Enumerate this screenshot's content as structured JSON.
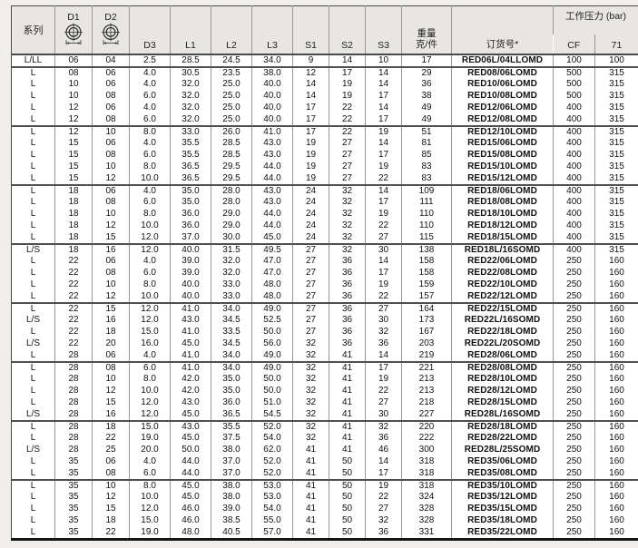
{
  "table": {
    "header": {
      "series": "系列",
      "d1": "D1",
      "d2": "D2",
      "d3": "D3",
      "l1": "L1",
      "l2": "L2",
      "l3": "L3",
      "s1": "S1",
      "s2": "S2",
      "s3": "S3",
      "weight_line1": "重量",
      "weight_line2": "克/件",
      "order_no": "订货号*",
      "pressure": "工作压力 (bar)",
      "cf": "CF",
      "p71": "71"
    },
    "columns": [
      "series",
      "d1",
      "d2",
      "d3",
      "l1",
      "l2",
      "l3",
      "s1",
      "s2",
      "s3",
      "weight",
      "order_no",
      "cf",
      "p71"
    ],
    "rows": [
      [
        "L/LL",
        "06",
        "04",
        "2.5",
        "28.5",
        "24.5",
        "34.0",
        "9",
        "14",
        "10",
        "17",
        "RED06L/04LLOMD",
        "100",
        "100"
      ],
      [
        "L",
        "08",
        "06",
        "4.0",
        "30.5",
        "23.5",
        "38.0",
        "12",
        "17",
        "14",
        "29",
        "RED08/06LOMD",
        "500",
        "315"
      ],
      [
        "L",
        "10",
        "06",
        "4.0",
        "32.0",
        "25.0",
        "40.0",
        "14",
        "19",
        "14",
        "36",
        "RED10/06LOMD",
        "500",
        "315"
      ],
      [
        "L",
        "10",
        "08",
        "6.0",
        "32.0",
        "25.0",
        "40.0",
        "14",
        "19",
        "17",
        "38",
        "RED10/08LOMD",
        "500",
        "315"
      ],
      [
        "L",
        "12",
        "06",
        "4.0",
        "32.0",
        "25.0",
        "40.0",
        "17",
        "22",
        "14",
        "49",
        "RED12/06LOMD",
        "400",
        "315"
      ],
      [
        "L",
        "12",
        "08",
        "6.0",
        "32.0",
        "25.0",
        "40.0",
        "17",
        "22",
        "17",
        "49",
        "RED12/08LOMD",
        "400",
        "315"
      ],
      [
        "L",
        "12",
        "10",
        "8.0",
        "33.0",
        "26.0",
        "41.0",
        "17",
        "22",
        "19",
        "51",
        "RED12/10LOMD",
        "400",
        "315"
      ],
      [
        "L",
        "15",
        "06",
        "4.0",
        "35.5",
        "28.5",
        "43.0",
        "19",
        "27",
        "14",
        "81",
        "RED15/06LOMD",
        "400",
        "315"
      ],
      [
        "L",
        "15",
        "08",
        "6.0",
        "35.5",
        "28.5",
        "43.0",
        "19",
        "27",
        "17",
        "85",
        "RED15/08LOMD",
        "400",
        "315"
      ],
      [
        "L",
        "15",
        "10",
        "8.0",
        "36.5",
        "29.5",
        "44.0",
        "19",
        "27",
        "19",
        "83",
        "RED15/10LOMD",
        "400",
        "315"
      ],
      [
        "L",
        "15",
        "12",
        "10.0",
        "36.5",
        "29.5",
        "44.0",
        "19",
        "27",
        "22",
        "83",
        "RED15/12LOMD",
        "400",
        "315"
      ],
      [
        "L",
        "18",
        "06",
        "4.0",
        "35.0",
        "28.0",
        "43.0",
        "24",
        "32",
        "14",
        "109",
        "RED18/06LOMD",
        "400",
        "315"
      ],
      [
        "L",
        "18",
        "08",
        "6.0",
        "35.0",
        "28.0",
        "43.0",
        "24",
        "32",
        "17",
        "111",
        "RED18/08LOMD",
        "400",
        "315"
      ],
      [
        "L",
        "18",
        "10",
        "8.0",
        "36.0",
        "29.0",
        "44.0",
        "24",
        "32",
        "19",
        "110",
        "RED18/10LOMD",
        "400",
        "315"
      ],
      [
        "L",
        "18",
        "12",
        "10.0",
        "36.0",
        "29.0",
        "44.0",
        "24",
        "32",
        "22",
        "110",
        "RED18/12LOMD",
        "400",
        "315"
      ],
      [
        "L",
        "18",
        "15",
        "12.0",
        "37.0",
        "30.0",
        "45.0",
        "24",
        "32",
        "27",
        "115",
        "RED18/15LOMD",
        "400",
        "315"
      ],
      [
        "L/S",
        "18",
        "16",
        "12.0",
        "40.0",
        "31.5",
        "49.5",
        "27",
        "32",
        "30",
        "138",
        "RED18L/16SOMD",
        "400",
        "315"
      ],
      [
        "L",
        "22",
        "06",
        "4.0",
        "39.0",
        "32.0",
        "47.0",
        "27",
        "36",
        "14",
        "158",
        "RED22/06LOMD",
        "250",
        "160"
      ],
      [
        "L",
        "22",
        "08",
        "6.0",
        "39.0",
        "32.0",
        "47.0",
        "27",
        "36",
        "17",
        "158",
        "RED22/08LOMD",
        "250",
        "160"
      ],
      [
        "L",
        "22",
        "10",
        "8.0",
        "40.0",
        "33.0",
        "48.0",
        "27",
        "36",
        "19",
        "159",
        "RED22/10LOMD",
        "250",
        "160"
      ],
      [
        "L",
        "22",
        "12",
        "10.0",
        "40.0",
        "33.0",
        "48.0",
        "27",
        "36",
        "22",
        "157",
        "RED22/12LOMD",
        "250",
        "160"
      ],
      [
        "L",
        "22",
        "15",
        "12.0",
        "41.0",
        "34.0",
        "49.0",
        "27",
        "36",
        "27",
        "164",
        "RED22/15LOMD",
        "250",
        "160"
      ],
      [
        "L/S",
        "22",
        "16",
        "12.0",
        "43.0",
        "34.5",
        "52.5",
        "27",
        "36",
        "30",
        "173",
        "RED22L/16SOMD",
        "250",
        "160"
      ],
      [
        "L",
        "22",
        "18",
        "15.0",
        "41.0",
        "33.5",
        "50.0",
        "27",
        "36",
        "32",
        "167",
        "RED22/18LOMD",
        "250",
        "160"
      ],
      [
        "L/S",
        "22",
        "20",
        "16.0",
        "45.0",
        "34.5",
        "56.0",
        "32",
        "36",
        "36",
        "203",
        "RED22L/20SOMD",
        "250",
        "160"
      ],
      [
        "L",
        "28",
        "06",
        "4.0",
        "41.0",
        "34.0",
        "49.0",
        "32",
        "41",
        "14",
        "219",
        "RED28/06LOMD",
        "250",
        "160"
      ],
      [
        "L",
        "28",
        "08",
        "6.0",
        "41.0",
        "34.0",
        "49.0",
        "32",
        "41",
        "17",
        "221",
        "RED28/08LOMD",
        "250",
        "160"
      ],
      [
        "L",
        "28",
        "10",
        "8.0",
        "42.0",
        "35.0",
        "50.0",
        "32",
        "41",
        "19",
        "213",
        "RED28/10LOMD",
        "250",
        "160"
      ],
      [
        "L",
        "28",
        "12",
        "10.0",
        "42.0",
        "35.0",
        "50.0",
        "32",
        "41",
        "22",
        "213",
        "RED28/12LOMD",
        "250",
        "160"
      ],
      [
        "L",
        "28",
        "15",
        "12.0",
        "43.0",
        "36.0",
        "51.0",
        "32",
        "41",
        "27",
        "218",
        "RED28/15LOMD",
        "250",
        "160"
      ],
      [
        "L/S",
        "28",
        "16",
        "12.0",
        "45.0",
        "36.5",
        "54.5",
        "32",
        "41",
        "30",
        "227",
        "RED28L/16SOMD",
        "250",
        "160"
      ],
      [
        "L",
        "28",
        "18",
        "15.0",
        "43.0",
        "35.5",
        "52.0",
        "32",
        "41",
        "32",
        "220",
        "RED28/18LOMD",
        "250",
        "160"
      ],
      [
        "L",
        "28",
        "22",
        "19.0",
        "45.0",
        "37.5",
        "54.0",
        "32",
        "41",
        "36",
        "222",
        "RED28/22LOMD",
        "250",
        "160"
      ],
      [
        "L/S",
        "28",
        "25",
        "20.0",
        "50.0",
        "38.0",
        "62.0",
        "41",
        "41",
        "46",
        "300",
        "RED28L/25SOMD",
        "250",
        "160"
      ],
      [
        "L",
        "35",
        "06",
        "4.0",
        "44.0",
        "37.0",
        "52.0",
        "41",
        "50",
        "14",
        "318",
        "RED35/06LOMD",
        "250",
        "160"
      ],
      [
        "L",
        "35",
        "08",
        "6.0",
        "44.0",
        "37.0",
        "52.0",
        "41",
        "50",
        "17",
        "318",
        "RED35/08LOMD",
        "250",
        "160"
      ],
      [
        "L",
        "35",
        "10",
        "8.0",
        "45.0",
        "38.0",
        "53.0",
        "41",
        "50",
        "19",
        "318",
        "RED35/10LOMD",
        "250",
        "160"
      ],
      [
        "L",
        "35",
        "12",
        "10.0",
        "45.0",
        "38.0",
        "53.0",
        "41",
        "50",
        "22",
        "324",
        "RED35/12LOMD",
        "250",
        "160"
      ],
      [
        "L",
        "35",
        "15",
        "12.0",
        "46.0",
        "39.0",
        "54.0",
        "41",
        "50",
        "27",
        "328",
        "RED35/15LOMD",
        "250",
        "160"
      ],
      [
        "L",
        "35",
        "18",
        "15.0",
        "46.0",
        "38.5",
        "55.0",
        "41",
        "50",
        "32",
        "328",
        "RED35/18LOMD",
        "250",
        "160"
      ],
      [
        "L",
        "35",
        "22",
        "19.0",
        "48.0",
        "40.5",
        "57.0",
        "41",
        "50",
        "36",
        "331",
        "RED35/22LOMD",
        "250",
        "160"
      ]
    ],
    "group_break_after": [
      0,
      5,
      10,
      15,
      20,
      25,
      30,
      35
    ]
  },
  "colors": {
    "header_bg": "#e8e6e3",
    "grid_line": "#979797",
    "group_line": "#4f4f4f",
    "bottom_border": "#161616",
    "page_bg": "#f1efec"
  }
}
